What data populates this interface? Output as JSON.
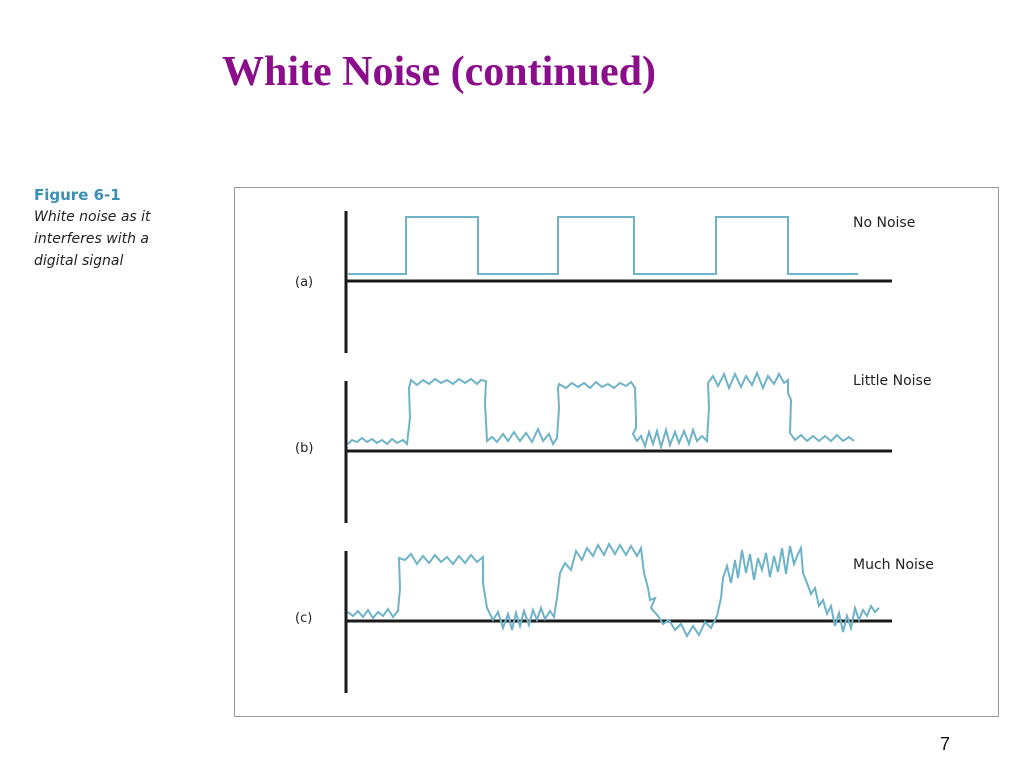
{
  "slide": {
    "title": "White Noise (continued)",
    "page_number": "7"
  },
  "caption": {
    "figure_label": "Figure 6-1",
    "lines": [
      "White noise as it",
      "interferes with a",
      "digital signal"
    ]
  },
  "panels": [
    {
      "label": "(a)",
      "signal_name": "No Noise"
    },
    {
      "label": "(b)",
      "signal_name": "Little Noise"
    },
    {
      "label": "(c)",
      "signal_name": "Much Noise"
    }
  ],
  "colors": {
    "title": "#8b0d8b",
    "signal": "#6fb3c8",
    "axis": "#1a1a1a",
    "caption_title": "#3a8fb5"
  }
}
